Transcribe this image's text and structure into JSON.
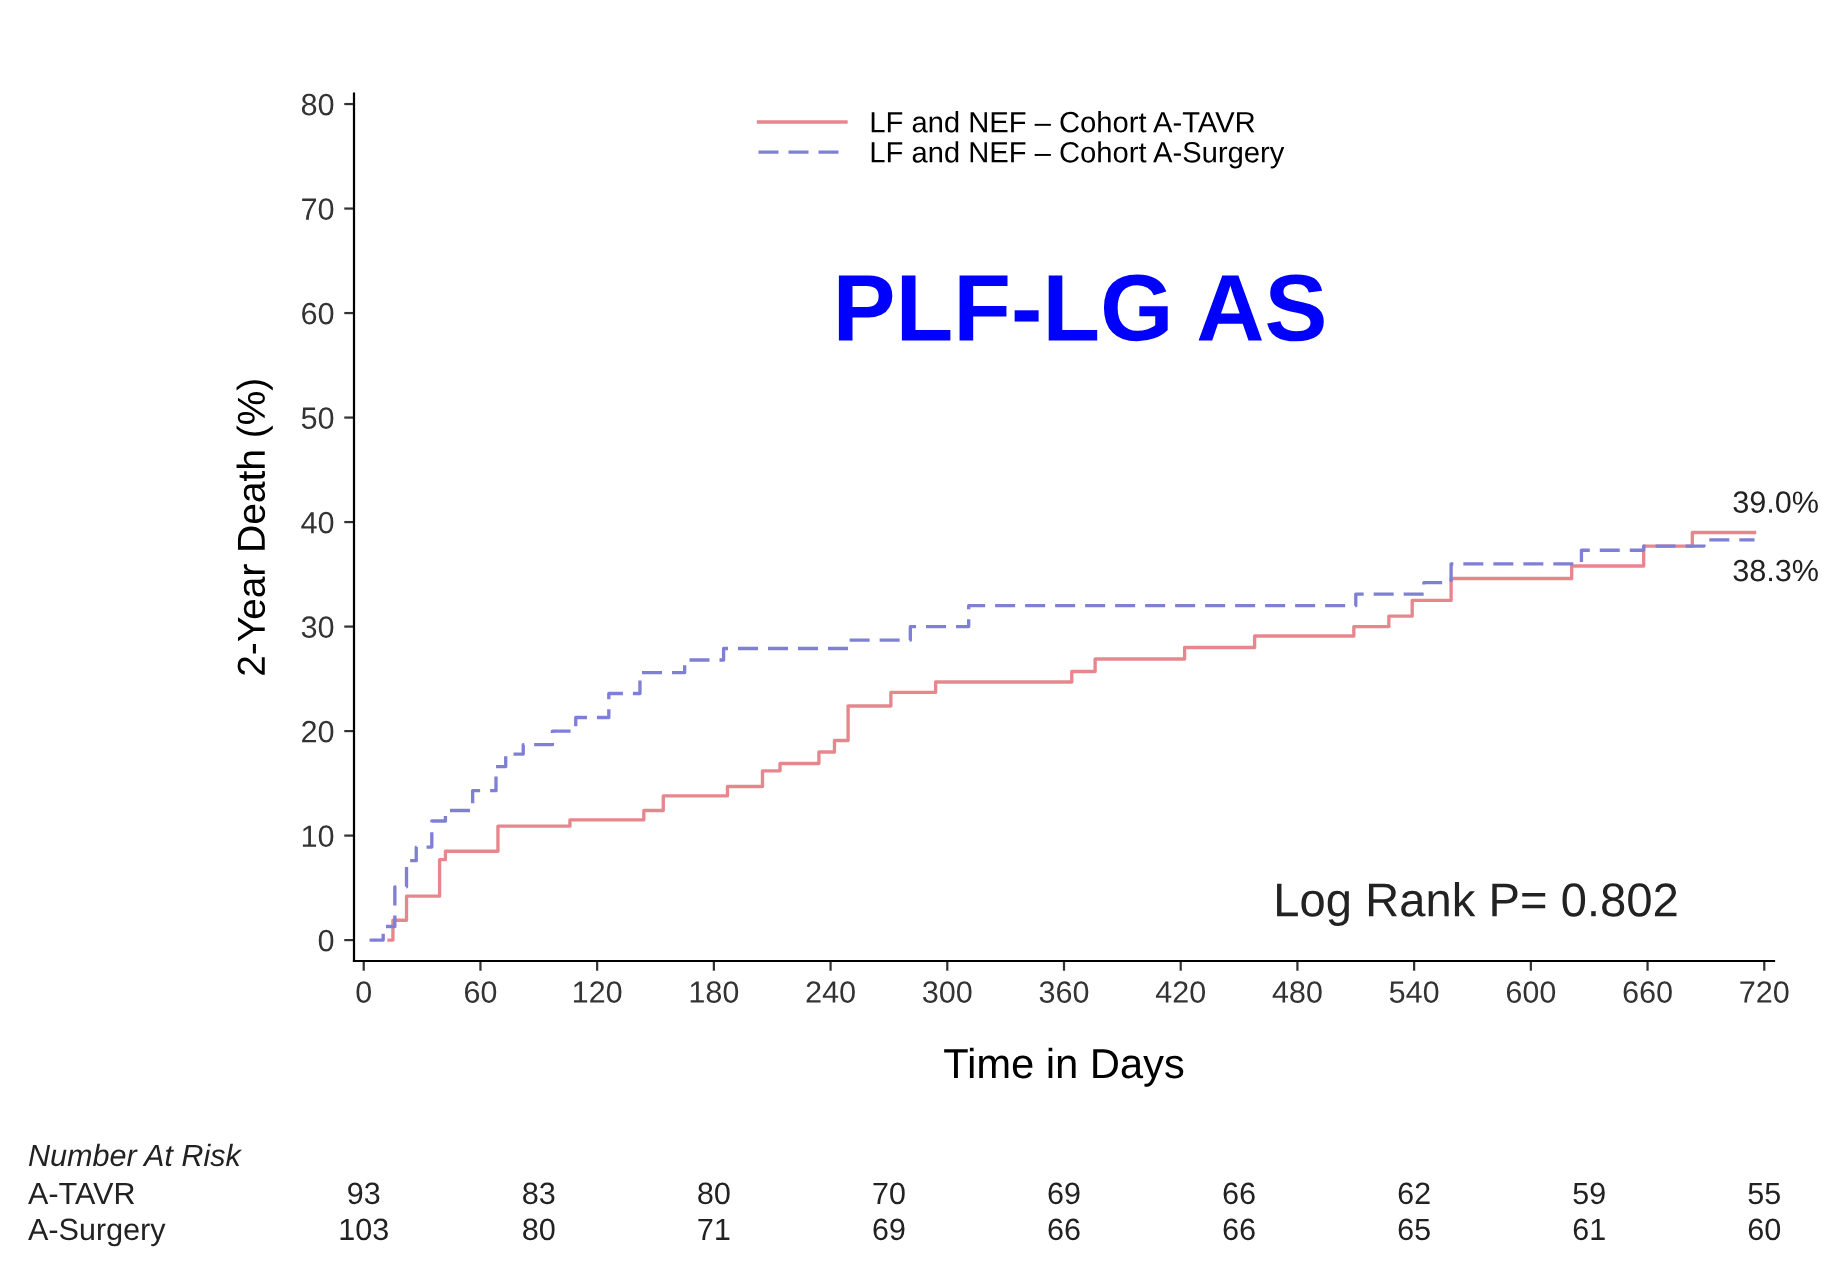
{
  "chart_data": {
    "type": "step",
    "xlabel": "Time in Days",
    "ylabel": "2-Year Death (%)",
    "xlim": [
      -5,
      725
    ],
    "ylim": [
      -2,
      81
    ],
    "xticks": [
      0,
      60,
      120,
      180,
      240,
      300,
      360,
      420,
      480,
      540,
      600,
      660,
      720
    ],
    "yticks": [
      0,
      10,
      20,
      30,
      40,
      50,
      60,
      70,
      80
    ],
    "legend": "top",
    "grid": false,
    "series": [
      {
        "name": "LF and NEF – Cohort A-TAVR",
        "color": "#e8868e",
        "line_style": "solid",
        "x": [
          13,
          15,
          22,
          39,
          42,
          69,
          106,
          144,
          154,
          187,
          205,
          214,
          234,
          242,
          249,
          271,
          294,
          364,
          376,
          422,
          458,
          509,
          527,
          539,
          559,
          621,
          658,
          683,
          715
        ],
        "values": [
          0,
          1.9,
          4.2,
          7.7,
          8.5,
          10.9,
          11.5,
          12.4,
          13.8,
          14.7,
          16.2,
          16.9,
          18.0,
          19.1,
          22.4,
          23.7,
          24.7,
          25.7,
          26.9,
          28.0,
          29.1,
          30.0,
          31.0,
          32.5,
          34.6,
          35.8,
          37.7,
          39.0,
          39.0
        ]
      },
      {
        "name": "LF and NEF – Cohort A-Surgery",
        "color": "#7f7fd6",
        "line_style": "dashed",
        "x": [
          3,
          10,
          16,
          22,
          27,
          35,
          42,
          56,
          68,
          73,
          82,
          97,
          109,
          126,
          142,
          165,
          185,
          249,
          281,
          311,
          510,
          545,
          559,
          626,
          658,
          689,
          715
        ],
        "values": [
          0,
          1.3,
          5.1,
          7.6,
          8.9,
          11.4,
          12.4,
          14.3,
          16.6,
          17.8,
          18.7,
          20.0,
          21.3,
          23.6,
          25.6,
          26.8,
          27.9,
          28.7,
          30.0,
          32.0,
          33.1,
          34.2,
          36.0,
          37.3,
          37.7,
          38.3,
          38.3
        ]
      }
    ],
    "annotations": [
      "PLF-LG AS",
      "Log Rank P= 0.802",
      "Number At Risk",
      "A-TAVR",
      "A-Surgery",
      {
        "text": "39.0%",
        "x": 715,
        "y": 39.0
      },
      {
        "text": "38.3%",
        "x": 715,
        "y": 38.3
      },
      "93",
      "83",
      "80",
      "70",
      "69",
      "66",
      "62",
      "59",
      "55",
      "103",
      "80",
      "71",
      "69",
      "66",
      "66",
      "65",
      "61",
      "60"
    ]
  }
}
